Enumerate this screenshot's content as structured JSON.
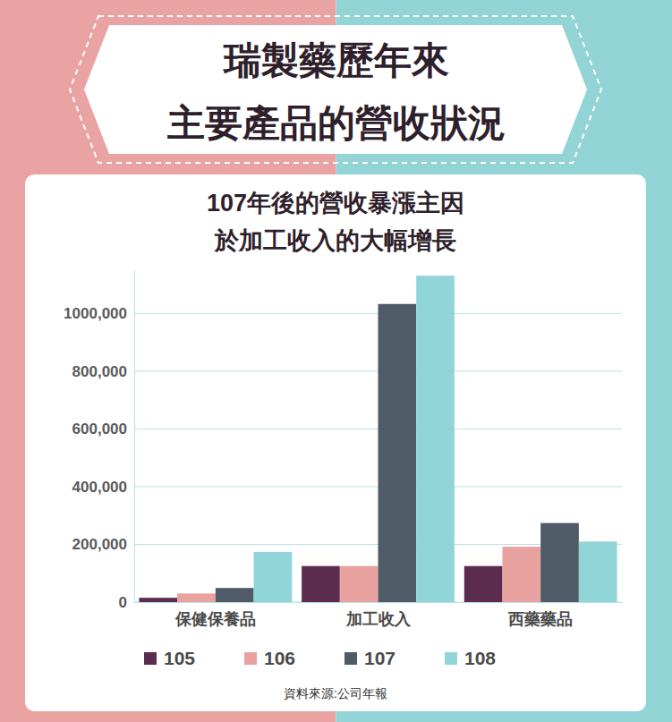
{
  "chart_data": {
    "type": "bar",
    "title": [
      "瑞製藥歷年來",
      "主要產品的營收狀況"
    ],
    "subtitle": [
      "107年後的營收暴漲主因",
      "於加工收入的大幅增長"
    ],
    "source": "資料來源:公司年報",
    "categories": [
      "保健保養品",
      "加工收入",
      "西藥藥品"
    ],
    "series": [
      {
        "name": "105",
        "color": "#5b2c4f",
        "values": [
          15000,
          125000,
          125000
        ]
      },
      {
        "name": "106",
        "color": "#e8a3a1",
        "values": [
          30000,
          125000,
          192000
        ]
      },
      {
        "name": "107",
        "color": "#4f5b67",
        "values": [
          49000,
          1033000,
          274000
        ]
      },
      {
        "name": "108",
        "color": "#92d5d8",
        "values": [
          174000,
          1131000,
          210000
        ]
      }
    ],
    "ylim": [
      0,
      1150000
    ],
    "yticks": [
      0,
      {
        "value": 200000,
        "label": "200,000"
      },
      {
        "value": 400000,
        "label": "400,000"
      },
      {
        "value": 600000,
        "label": "600,000"
      },
      {
        "value": 800000,
        "label": "800,000"
      },
      {
        "value": 1000000,
        "label": "1000,000"
      }
    ],
    "grid": true,
    "legend": "bottom"
  }
}
